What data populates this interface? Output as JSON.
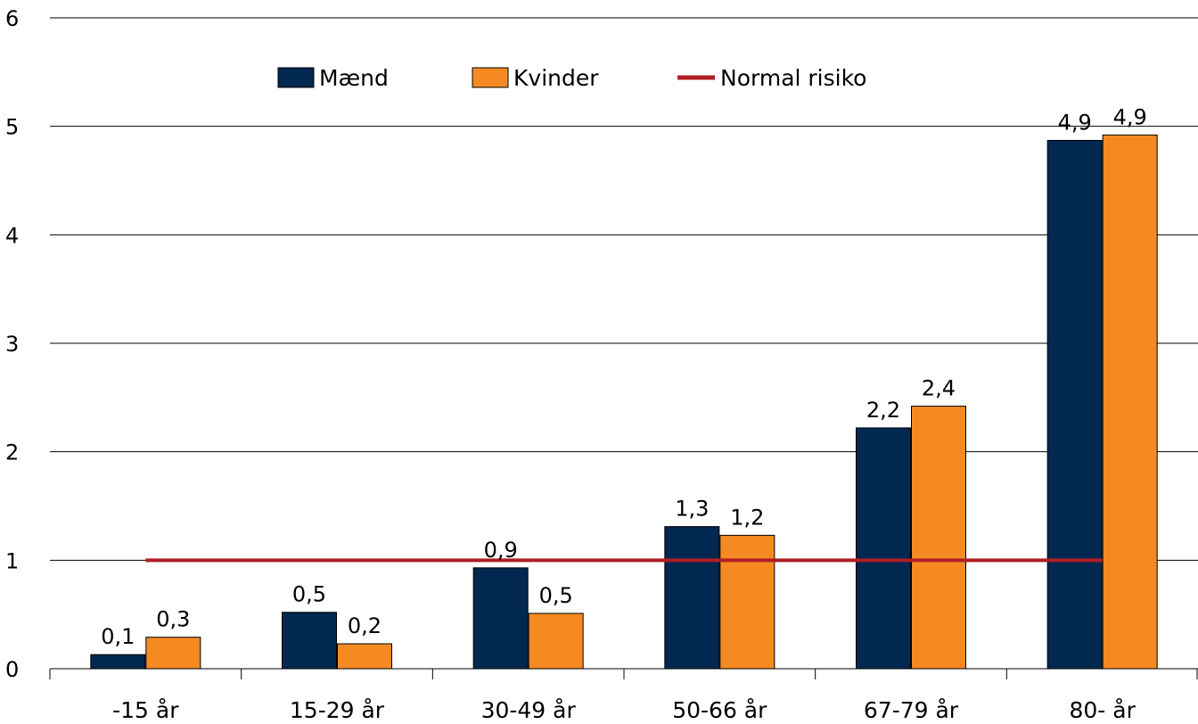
{
  "chart_data": {
    "type": "bar",
    "categories": [
      "-15 år",
      "15-29 år",
      "30-49 år",
      "50-66 år",
      "67-79 år",
      "80- år"
    ],
    "series": [
      {
        "name": "Mænd",
        "values": [
          0.13,
          0.52,
          0.93,
          1.31,
          2.22,
          4.87
        ],
        "labels": [
          "0,1",
          "0,5",
          "0,9",
          "1,3",
          "2,2",
          "4,9"
        ],
        "color": "#002850"
      },
      {
        "name": "Kvinder",
        "values": [
          0.29,
          0.23,
          0.51,
          1.23,
          2.42,
          4.92
        ],
        "labels": [
          "0,3",
          "0,2",
          "0,5",
          "1,2",
          "2,4",
          "4,9"
        ],
        "color": "#F58A23"
      }
    ],
    "reference_line": {
      "name": "Normal risiko",
      "value": 1,
      "color": "#B01E23"
    },
    "ylim": [
      0,
      6
    ],
    "yticks": [
      "0",
      "1",
      "2",
      "3",
      "4",
      "5",
      "6"
    ],
    "grid": true,
    "legend_position": "top-center"
  }
}
